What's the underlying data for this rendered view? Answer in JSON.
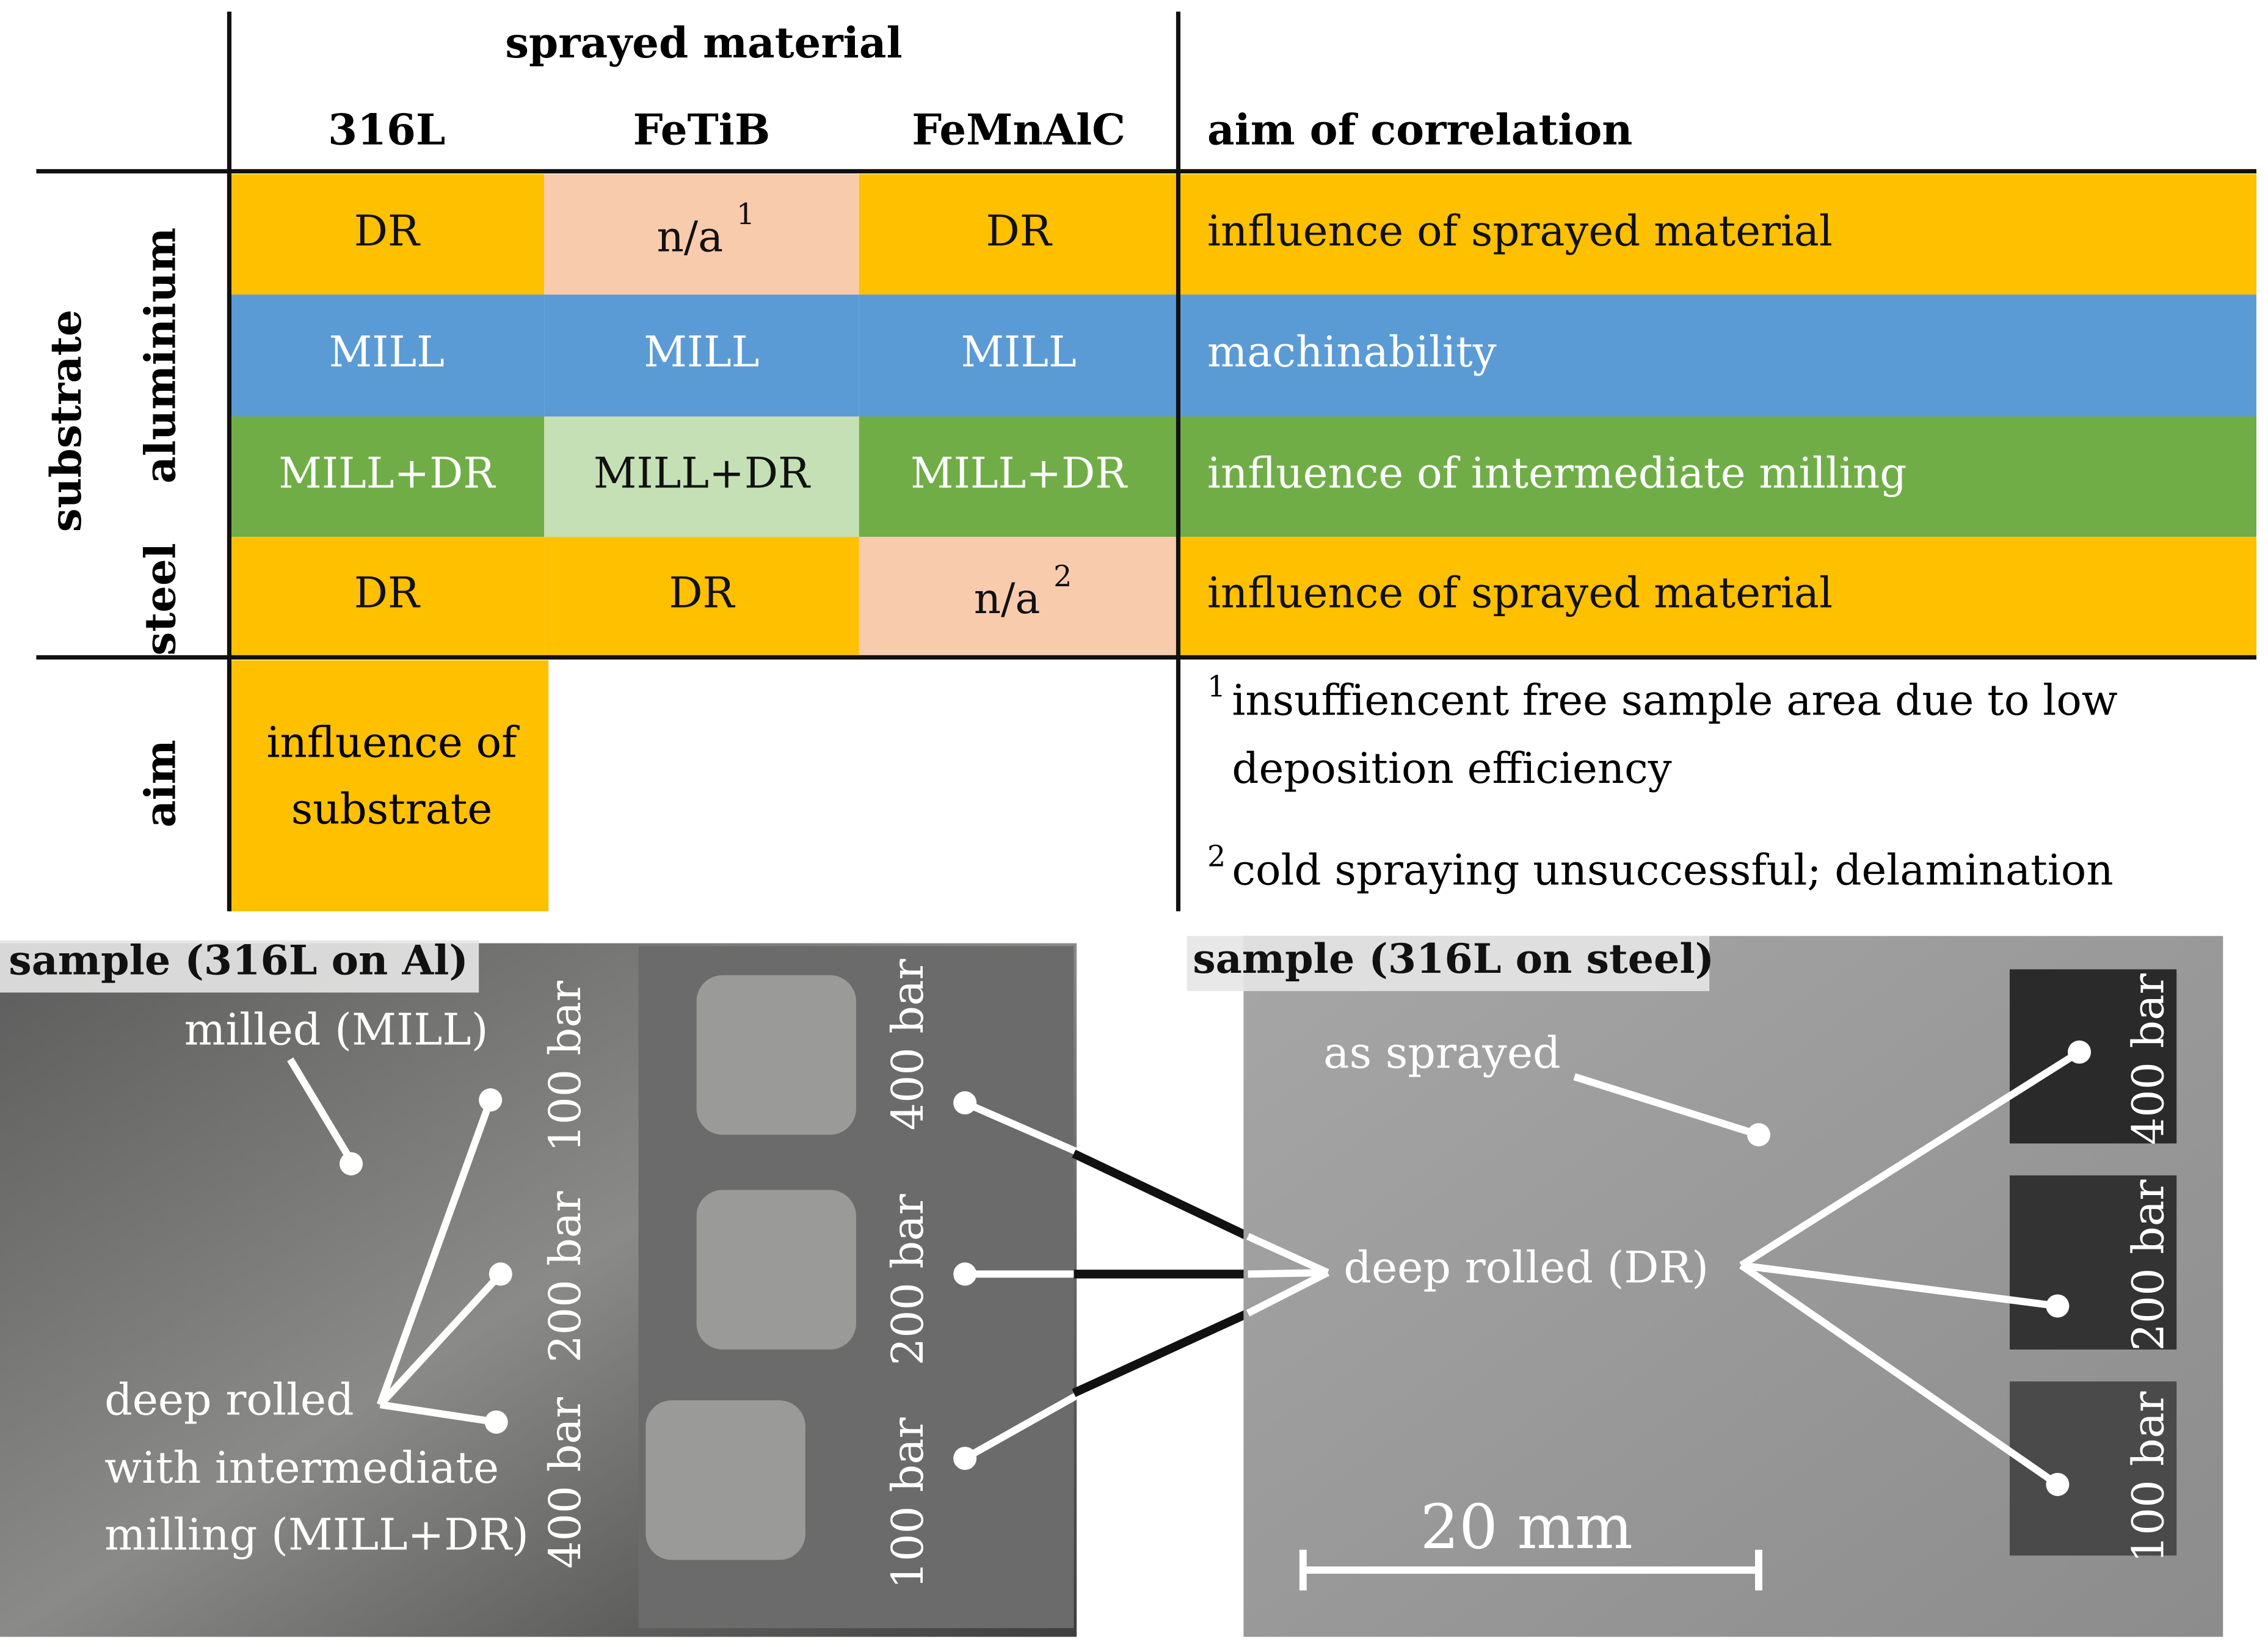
{
  "table": {
    "group_header": "sprayed material",
    "columns": [
      "316L",
      "FeTiB",
      "FeMnAlC"
    ],
    "aim_header": "aim of correlation",
    "row_group": "substrate",
    "row_subgroups": [
      "aluminium",
      "steel"
    ],
    "rows": [
      [
        {
          "text": "DR"
        },
        {
          "text": "n/a",
          "note": "1"
        },
        {
          "text": "DR"
        },
        {
          "text": "influence of sprayed material"
        }
      ],
      [
        {
          "text": "MILL"
        },
        {
          "text": "MILL"
        },
        {
          "text": "MILL"
        },
        {
          "text": "machinability"
        }
      ],
      [
        {
          "text": "MILL+DR"
        },
        {
          "text": "MILL+DR"
        },
        {
          "text": "MILL+DR"
        },
        {
          "text": "influence of intermediate milling"
        }
      ],
      [
        {
          "text": "DR"
        },
        {
          "text": "DR"
        },
        {
          "text": "n/a",
          "note": "2"
        },
        {
          "text": "influence of sprayed material"
        }
      ]
    ],
    "aim_row": {
      "label": "aim",
      "lines": [
        "influence of",
        "substrate"
      ]
    },
    "footnotes": [
      {
        "mark": "1",
        "lines": [
          "insuffiencent free sample area due to low",
          "deposition efficiency"
        ]
      },
      {
        "mark": "2",
        "lines": [
          "cold spraying unsuccessful; delamination"
        ]
      }
    ]
  },
  "photos": [
    {
      "title": "sample (316L on Al)",
      "labels": [
        "milled (MILL)",
        "deep rolled",
        "with intermediate",
        "milling (MILL+DR)"
      ],
      "pressures": [
        "100 bar",
        "200 bar",
        "400 bar",
        "400 bar",
        "200 bar",
        "100 bar"
      ]
    },
    {
      "title": "sample (316L on steel)",
      "labels": [
        "as sprayed",
        "deep rolled (DR)"
      ],
      "pressures": [
        "400 bar",
        "200 bar",
        "100 bar"
      ],
      "scale": "20 mm"
    }
  ]
}
